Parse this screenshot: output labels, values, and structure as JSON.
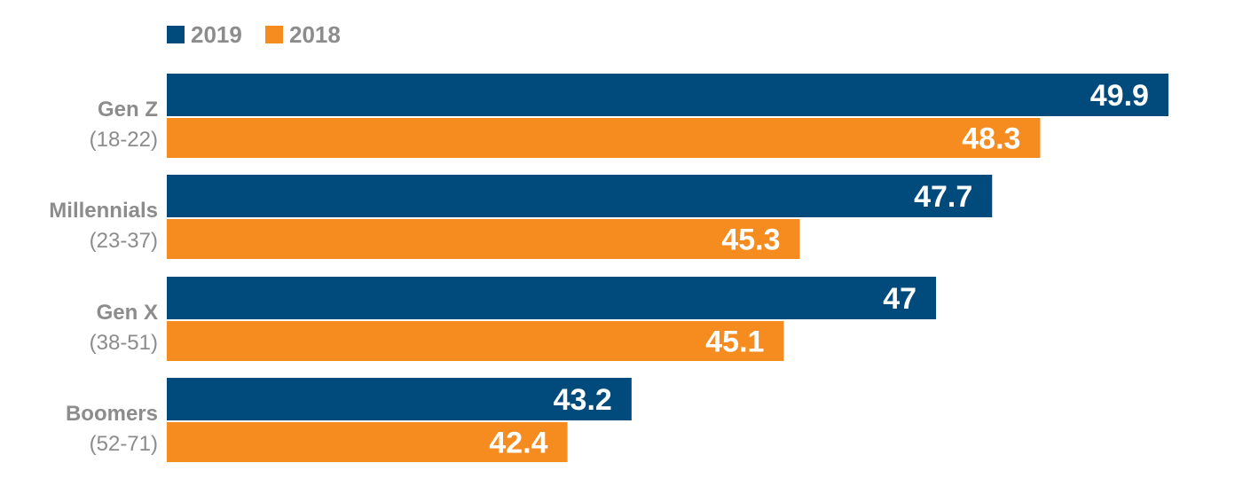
{
  "chart_data": {
    "type": "bar",
    "orientation": "horizontal",
    "categories": [
      {
        "name": "Gen Z",
        "range": "(18-22)"
      },
      {
        "name": "Millennials",
        "range": "(23-37)"
      },
      {
        "name": "Gen X",
        "range": "(38-51)"
      },
      {
        "name": "Boomers",
        "range": "(52-71)"
      }
    ],
    "series": [
      {
        "name": "2019",
        "color": "#004a7c",
        "values": [
          49.9,
          47.7,
          47,
          43.2
        ],
        "labels": [
          "49.9",
          "47.7",
          "47",
          "43.2"
        ]
      },
      {
        "name": "2018",
        "color": "#f68b1f",
        "values": [
          48.3,
          45.3,
          45.1,
          42.4
        ],
        "labels": [
          "48.3",
          "45.3",
          "45.1",
          "42.4"
        ]
      }
    ],
    "xlim": [
      37.4,
      50.0
    ],
    "legend": "top-left",
    "grid": false
  }
}
